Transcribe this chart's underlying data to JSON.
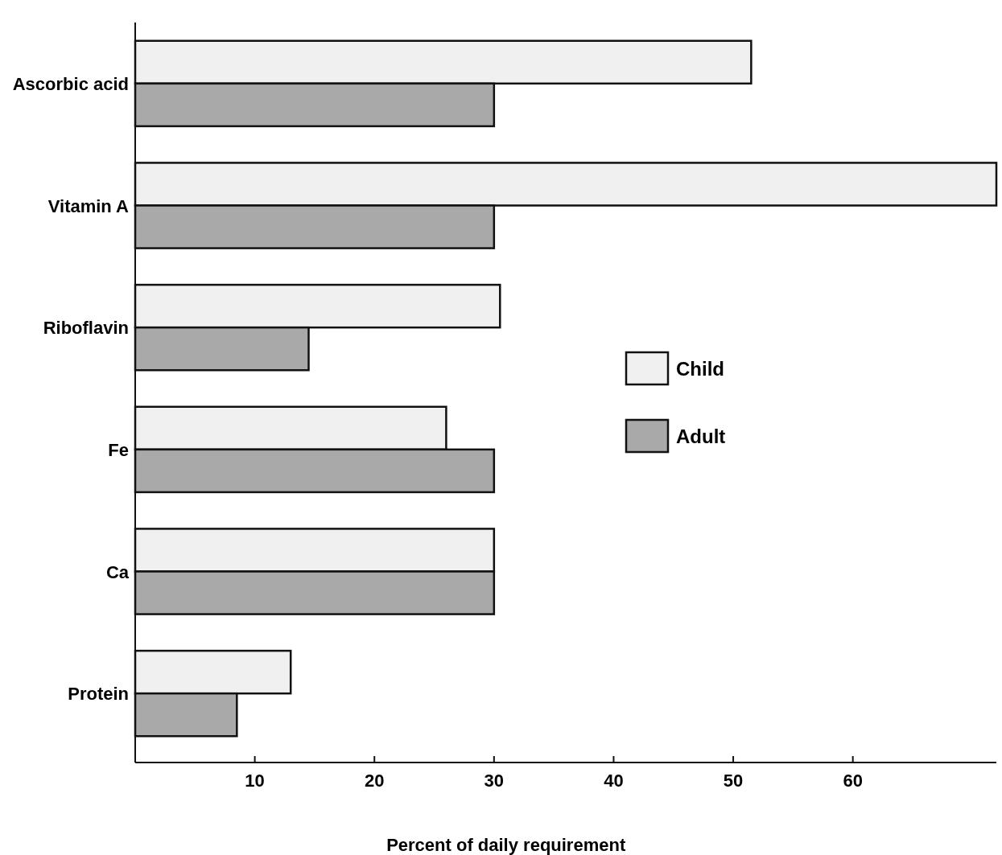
{
  "chart_data": {
    "type": "bar",
    "orientation": "horizontal",
    "xlabel": "Percent of daily requirement",
    "categories": [
      "Ascorbic acid",
      "Vitamin A",
      "Riboflavin",
      "Fe",
      "Ca",
      "Protein"
    ],
    "series": [
      {
        "name": "Child",
        "color": "#f0f0f0",
        "values": [
          51.5,
          72,
          30.5,
          26,
          30,
          13
        ]
      },
      {
        "name": "Adult",
        "color": "#a9a9a9",
        "values": [
          30,
          30,
          14.5,
          30,
          30,
          8.5
        ]
      }
    ],
    "xlim": [
      0,
      72
    ],
    "xticks": [
      10,
      20,
      30,
      40,
      50,
      60
    ],
    "grid": false,
    "legend": "right"
  }
}
